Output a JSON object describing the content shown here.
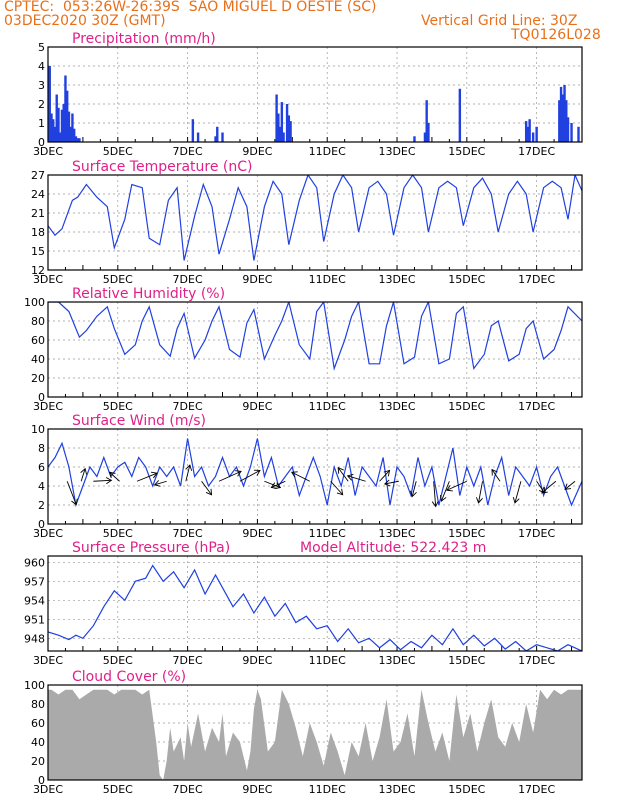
{
  "header": {
    "line1_left": "CPTEC:  053:26W-26:39S  SAO MIGUEL D OESTE (SC)",
    "line2_left": "03DEC2020 30Z (GMT)",
    "line2_right": "Vertical Grid Line: 30Z",
    "line3_right": "TQ0126L028"
  },
  "colors": {
    "header": "#e8701a",
    "title": "#e0208a",
    "series": "#2040e0",
    "cloud": "#aaaaaa"
  },
  "chart_data": [
    {
      "id": "precip",
      "type": "bar",
      "title": "Precipitation (mm/h)",
      "x_unit": "day of Dec 2020",
      "xlim": [
        3,
        18.3
      ],
      "ylim": [
        0,
        5
      ],
      "yticks": [
        0,
        1,
        2,
        3,
        4,
        5
      ],
      "xtick_labels": [
        "3DEC",
        "5DEC",
        "7DEC",
        "9DEC",
        "11DEC",
        "13DEC",
        "15DEC",
        "17DEC"
      ],
      "xticks": [
        3,
        5,
        7,
        9,
        11,
        13,
        15,
        17
      ],
      "x": [
        3.05,
        3.1,
        3.15,
        3.2,
        3.25,
        3.3,
        3.35,
        3.4,
        3.45,
        3.5,
        3.55,
        3.6,
        3.65,
        3.7,
        3.75,
        3.8,
        3.85,
        3.9,
        7.15,
        7.3,
        7.8,
        7.85,
        8.0,
        9.55,
        9.6,
        9.65,
        9.7,
        9.75,
        9.85,
        9.9,
        9.95,
        13.5,
        13.8,
        13.85,
        13.9,
        14.8,
        16.7,
        16.75,
        16.8,
        16.9,
        17.0,
        17.65,
        17.7,
        17.75,
        17.8,
        17.85,
        17.9,
        18.0,
        18.2
      ],
      "values": [
        4.0,
        1.5,
        1.2,
        0.8,
        2.5,
        1.8,
        0.5,
        1.7,
        2.0,
        3.5,
        2.7,
        1.6,
        0.8,
        1.5,
        0.7,
        0.3,
        0.2,
        0.2,
        1.2,
        0.5,
        0.3,
        0.8,
        0.5,
        2.5,
        1.5,
        0.8,
        2.1,
        0.5,
        2.0,
        1.4,
        1.1,
        0.3,
        0.5,
        2.2,
        1.0,
        2.8,
        1.1,
        0.8,
        1.2,
        0.5,
        0.8,
        2.2,
        2.9,
        2.5,
        3.0,
        2.2,
        1.3,
        1.0,
        0.8
      ]
    },
    {
      "id": "temp",
      "type": "line",
      "title": "Surface Temperature (nC)",
      "xlim": [
        3,
        18.3
      ],
      "ylim": [
        12,
        27
      ],
      "yticks": [
        12,
        15,
        18,
        21,
        24,
        27
      ],
      "xtick_labels": [
        "3DEC",
        "5DEC",
        "7DEC",
        "9DEC",
        "11DEC",
        "13DEC",
        "15DEC",
        "17DEC"
      ],
      "xticks": [
        3,
        5,
        7,
        9,
        11,
        13,
        15,
        17
      ],
      "x": [
        3.0,
        3.2,
        3.4,
        3.7,
        3.85,
        4.1,
        4.4,
        4.7,
        4.9,
        5.2,
        5.4,
        5.7,
        5.9,
        6.2,
        6.45,
        6.7,
        6.9,
        7.2,
        7.45,
        7.7,
        7.9,
        8.2,
        8.45,
        8.7,
        8.9,
        9.2,
        9.45,
        9.7,
        9.9,
        10.2,
        10.45,
        10.7,
        10.9,
        11.2,
        11.45,
        11.7,
        11.9,
        12.2,
        12.45,
        12.7,
        12.9,
        13.2,
        13.45,
        13.7,
        13.9,
        14.2,
        14.45,
        14.7,
        14.9,
        15.2,
        15.45,
        15.7,
        15.9,
        16.2,
        16.45,
        16.7,
        16.9,
        17.2,
        17.45,
        17.7,
        17.9,
        18.1,
        18.3
      ],
      "values": [
        19,
        17.5,
        18.5,
        23,
        23.5,
        25.5,
        23.5,
        22,
        15.5,
        20,
        25.5,
        25,
        17,
        16,
        23,
        25,
        13.5,
        20.5,
        25.5,
        22,
        14.5,
        20,
        25,
        22,
        13.5,
        22,
        26,
        24,
        16,
        23,
        27,
        25,
        16.5,
        24,
        27,
        25,
        18,
        25,
        26,
        24,
        17.5,
        25,
        27,
        25,
        18,
        25,
        26,
        25,
        19,
        25,
        26.5,
        24,
        18,
        24,
        26,
        24,
        18,
        25,
        26,
        25,
        20,
        27,
        24.5
      ]
    },
    {
      "id": "rh",
      "type": "line",
      "title": "Relative Humidity (%)",
      "xlim": [
        3,
        18.3
      ],
      "ylim": [
        0,
        100
      ],
      "yticks": [
        0,
        20,
        40,
        60,
        80,
        100
      ],
      "xtick_labels": [
        "3DEC",
        "5DEC",
        "7DEC",
        "9DEC",
        "11DEC",
        "13DEC",
        "15DEC",
        "17DEC"
      ],
      "xticks": [
        3,
        5,
        7,
        9,
        11,
        13,
        15,
        17
      ],
      "x": [
        3.0,
        3.3,
        3.6,
        3.9,
        4.1,
        4.4,
        4.7,
        4.9,
        5.2,
        5.5,
        5.7,
        5.9,
        6.2,
        6.5,
        6.7,
        6.9,
        7.2,
        7.5,
        7.7,
        7.9,
        8.2,
        8.5,
        8.7,
        8.9,
        9.2,
        9.5,
        9.7,
        9.9,
        10.2,
        10.5,
        10.7,
        10.9,
        11.2,
        11.5,
        11.7,
        11.9,
        12.2,
        12.5,
        12.7,
        12.9,
        13.2,
        13.5,
        13.7,
        13.9,
        14.2,
        14.5,
        14.7,
        14.9,
        15.2,
        15.5,
        15.7,
        15.9,
        16.2,
        16.5,
        16.7,
        16.9,
        17.2,
        17.5,
        17.7,
        17.9,
        18.3
      ],
      "values": [
        100,
        100,
        90,
        63,
        70,
        85,
        95,
        72,
        45,
        55,
        80,
        95,
        55,
        43,
        72,
        88,
        41,
        60,
        80,
        95,
        50,
        42,
        78,
        92,
        40,
        65,
        80,
        100,
        55,
        40,
        90,
        100,
        30,
        60,
        85,
        100,
        35,
        35,
        75,
        100,
        35,
        42,
        85,
        100,
        35,
        40,
        88,
        95,
        30,
        45,
        75,
        80,
        38,
        45,
        72,
        80,
        40,
        50,
        70,
        95,
        80
      ]
    },
    {
      "id": "wind",
      "type": "line",
      "title": "Surface Wind (m/s)",
      "xlim": [
        3,
        18.3
      ],
      "ylim": [
        0,
        10
      ],
      "yticks": [
        0,
        2,
        4,
        6,
        8,
        10
      ],
      "xtick_labels": [
        "3DEC",
        "5DEC",
        "7DEC",
        "9DEC",
        "11DEC",
        "13DEC",
        "15DEC",
        "17DEC"
      ],
      "xticks": [
        3,
        5,
        7,
        9,
        11,
        13,
        15,
        17
      ],
      "x": [
        3.0,
        3.2,
        3.4,
        3.6,
        3.8,
        4.0,
        4.2,
        4.4,
        4.6,
        4.8,
        5.0,
        5.2,
        5.4,
        5.6,
        5.8,
        6.0,
        6.2,
        6.4,
        6.6,
        6.8,
        7.0,
        7.2,
        7.4,
        7.6,
        7.8,
        8.0,
        8.2,
        8.4,
        8.6,
        8.8,
        9.0,
        9.2,
        9.4,
        9.6,
        9.8,
        10.0,
        10.2,
        10.4,
        10.6,
        10.8,
        11.0,
        11.2,
        11.4,
        11.6,
        11.8,
        12.0,
        12.2,
        12.4,
        12.6,
        12.8,
        13.0,
        13.2,
        13.4,
        13.6,
        13.8,
        14.0,
        14.2,
        14.4,
        14.6,
        14.8,
        15.0,
        15.2,
        15.4,
        15.6,
        15.8,
        16.0,
        16.2,
        16.4,
        16.6,
        16.8,
        17.0,
        17.2,
        17.4,
        17.6,
        17.8,
        18.0,
        18.3
      ],
      "values": [
        6,
        7,
        8.5,
        6,
        2,
        4,
        6,
        5,
        7,
        5,
        6,
        6.5,
        5,
        7,
        6,
        4,
        6,
        5,
        6,
        4,
        9,
        5,
        6,
        4,
        5,
        7,
        5,
        6,
        4,
        6,
        9,
        5,
        7,
        4,
        5,
        6,
        3,
        5,
        7,
        5,
        2,
        6,
        4,
        7,
        3,
        6,
        5,
        4,
        7,
        2,
        6,
        5,
        3,
        7,
        4,
        6,
        2,
        5,
        8,
        3,
        6,
        4,
        6,
        2,
        5,
        7,
        3,
        6,
        5,
        4,
        6,
        3,
        5,
        6,
        4,
        2,
        4.5
      ],
      "vectors": [
        {
          "x": 3.55,
          "dx": 0.45,
          "dy": -2.6
        },
        {
          "x": 3.95,
          "dx": 0.2,
          "dy": 1.4
        },
        {
          "x": 4.3,
          "dx": 0.9,
          "dy": 0.1
        },
        {
          "x": 5.05,
          "dx": -0.5,
          "dy": 1.0
        },
        {
          "x": 5.55,
          "dx": 1.0,
          "dy": 0.9
        },
        {
          "x": 6.4,
          "dx": -0.6,
          "dy": -0.4
        },
        {
          "x": 6.95,
          "dx": 0.2,
          "dy": 1.8
        },
        {
          "x": 7.4,
          "dx": 0.5,
          "dy": -1.5
        },
        {
          "x": 7.9,
          "dx": 1.1,
          "dy": 1.1
        },
        {
          "x": 8.5,
          "dx": 1.0,
          "dy": 1.2
        },
        {
          "x": 9.2,
          "dx": 0.8,
          "dy": -0.7
        },
        {
          "x": 9.8,
          "dx": -0.7,
          "dy": -0.7
        },
        {
          "x": 10.5,
          "dx": -0.9,
          "dy": 1.0
        },
        {
          "x": 11.1,
          "dx": 0.6,
          "dy": -1.5
        },
        {
          "x": 11.6,
          "dx": -0.5,
          "dy": 1.5
        },
        {
          "x": 12.1,
          "dx": -0.9,
          "dy": 0.6
        },
        {
          "x": 12.5,
          "dx": 0.5,
          "dy": 1.2
        },
        {
          "x": 13.05,
          "dx": -0.7,
          "dy": -0.3
        },
        {
          "x": 13.55,
          "dx": -0.2,
          "dy": -1.7
        },
        {
          "x": 14.05,
          "dx": 0.1,
          "dy": -2.8
        },
        {
          "x": 14.5,
          "dx": -0.4,
          "dy": -2.2
        },
        {
          "x": 15.0,
          "dx": -1.0,
          "dy": -1.0
        },
        {
          "x": 15.45,
          "dx": -0.2,
          "dy": -2.4
        },
        {
          "x": 15.95,
          "dx": -0.4,
          "dy": 1.3
        },
        {
          "x": 16.55,
          "dx": -0.3,
          "dy": -2.4
        },
        {
          "x": 17.0,
          "dx": 0.4,
          "dy": -1.3
        },
        {
          "x": 17.55,
          "dx": -0.7,
          "dy": -1.3
        },
        {
          "x": 18.1,
          "dx": -0.5,
          "dy": -0.9
        }
      ]
    },
    {
      "id": "pres",
      "type": "line",
      "title": "Surface Pressure (hPa)",
      "annotation": "Model Altitude: 522.423  m",
      "xlim": [
        3,
        18.3
      ],
      "ylim": [
        946,
        961
      ],
      "yticks": [
        948,
        951,
        954,
        957,
        960
      ],
      "xtick_labels": [
        "3DEC",
        "5DEC",
        "7DEC",
        "9DEC",
        "11DEC",
        "13DEC",
        "15DEC",
        "17DEC"
      ],
      "xticks": [
        3,
        5,
        7,
        9,
        11,
        13,
        15,
        17
      ],
      "x": [
        3.0,
        3.3,
        3.6,
        3.8,
        4.0,
        4.3,
        4.6,
        4.9,
        5.2,
        5.5,
        5.8,
        6.0,
        6.3,
        6.6,
        6.9,
        7.2,
        7.5,
        7.8,
        8.0,
        8.3,
        8.6,
        8.9,
        9.2,
        9.5,
        9.8,
        10.1,
        10.4,
        10.7,
        11.0,
        11.3,
        11.6,
        11.9,
        12.2,
        12.5,
        12.8,
        13.1,
        13.4,
        13.7,
        14.0,
        14.3,
        14.6,
        14.9,
        15.2,
        15.5,
        15.8,
        16.1,
        16.4,
        16.7,
        17.0,
        17.3,
        17.6,
        17.9,
        18.3
      ],
      "values": [
        949,
        948.5,
        947.8,
        948.5,
        948,
        950,
        953,
        955.5,
        954,
        957,
        957.5,
        959.5,
        957,
        958.5,
        956,
        958.8,
        955,
        958,
        956,
        953,
        955,
        952,
        954.5,
        951.5,
        953.5,
        950.5,
        951.5,
        949.5,
        950,
        947.5,
        949.5,
        947.3,
        948,
        946.5,
        947.8,
        946.2,
        947.5,
        946.5,
        948.5,
        947,
        949.5,
        947,
        948.5,
        946.8,
        948,
        946.3,
        947.5,
        946,
        947,
        946.5,
        946,
        947,
        946
      ]
    },
    {
      "id": "cloud",
      "type": "area",
      "title": "Cloud Cover (%)",
      "xlim": [
        3,
        18.3
      ],
      "ylim": [
        0,
        100
      ],
      "yticks": [
        0,
        20,
        40,
        60,
        80,
        100
      ],
      "xtick_labels": [
        "3DEC",
        "5DEC",
        "7DEC",
        "9DEC",
        "11DEC",
        "13DEC",
        "15DEC",
        "17DEC"
      ],
      "xticks": [
        3,
        5,
        7,
        9,
        11,
        13,
        15,
        17
      ],
      "x": [
        3.0,
        3.1,
        3.3,
        3.5,
        3.7,
        3.9,
        4.1,
        4.3,
        4.5,
        4.7,
        4.9,
        5.1,
        5.3,
        5.5,
        5.7,
        5.9,
        6.1,
        6.2,
        6.3,
        6.4,
        6.5,
        6.6,
        6.8,
        6.9,
        7.0,
        7.1,
        7.3,
        7.5,
        7.7,
        7.9,
        8.0,
        8.1,
        8.3,
        8.5,
        8.7,
        8.8,
        8.9,
        9.0,
        9.1,
        9.3,
        9.5,
        9.7,
        9.9,
        10.1,
        10.3,
        10.5,
        10.7,
        10.9,
        11.1,
        11.3,
        11.5,
        11.7,
        11.9,
        12.1,
        12.3,
        12.5,
        12.7,
        12.9,
        13.1,
        13.3,
        13.5,
        13.7,
        13.9,
        14.1,
        14.3,
        14.5,
        14.7,
        14.9,
        15.1,
        15.3,
        15.5,
        15.7,
        15.9,
        16.1,
        16.3,
        16.5,
        16.7,
        16.9,
        17.1,
        17.3,
        17.5,
        17.7,
        17.9,
        18.1,
        18.3
      ],
      "values": [
        95,
        95,
        90,
        95,
        95,
        85,
        90,
        95,
        95,
        95,
        90,
        95,
        95,
        95,
        90,
        95,
        40,
        5,
        0,
        20,
        55,
        30,
        45,
        20,
        60,
        35,
        70,
        30,
        55,
        40,
        70,
        25,
        50,
        40,
        10,
        30,
        75,
        95,
        85,
        30,
        40,
        95,
        80,
        55,
        25,
        60,
        40,
        15,
        50,
        30,
        5,
        40,
        25,
        60,
        20,
        45,
        85,
        30,
        40,
        70,
        25,
        95,
        60,
        30,
        50,
        20,
        90,
        45,
        70,
        30,
        60,
        85,
        45,
        35,
        60,
        40,
        80,
        50,
        95,
        85,
        95,
        90,
        95,
        95,
        95
      ]
    }
  ]
}
